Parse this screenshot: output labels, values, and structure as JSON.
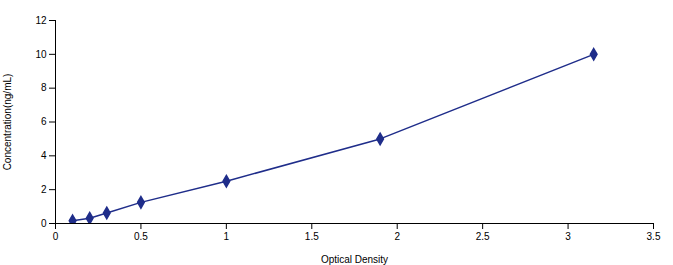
{
  "chart_data": {
    "type": "line",
    "x": [
      0.1,
      0.2,
      0.3,
      0.5,
      1.0,
      1.9,
      3.15
    ],
    "values": [
      0.156,
      0.313,
      0.625,
      1.25,
      2.5,
      5.0,
      10.0
    ],
    "color": "#1F2D8A",
    "marker": "diamond",
    "xlabel": "Optical Density",
    "ylabel": "Concentration(ng/mL)",
    "xlim": [
      0,
      3.5
    ],
    "ylim": [
      0,
      12
    ],
    "xticks": [
      0,
      0.5,
      1,
      1.5,
      2,
      2.5,
      3,
      3.5
    ],
    "yticks": [
      0,
      2,
      4,
      6,
      8,
      10,
      12
    ],
    "grid": false
  }
}
